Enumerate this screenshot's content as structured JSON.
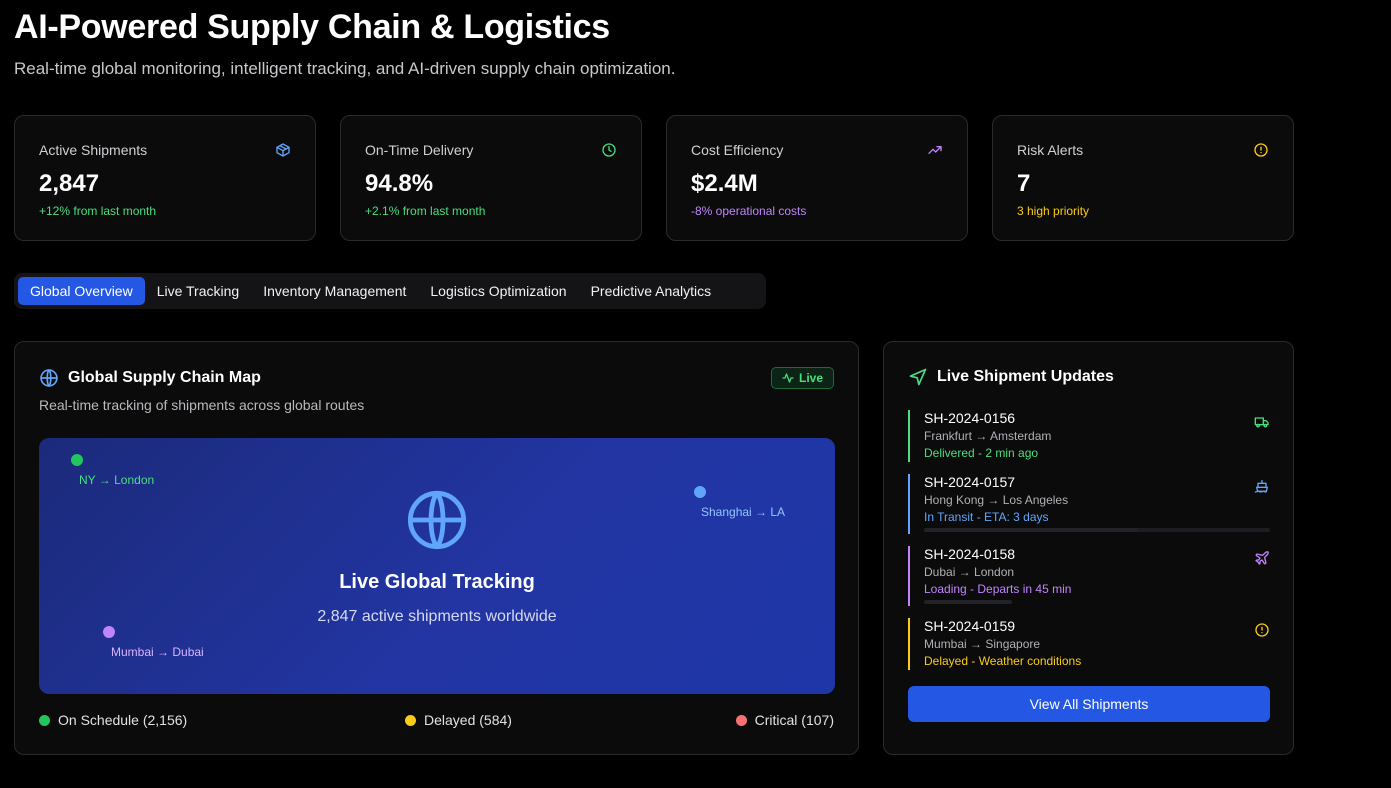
{
  "header": {
    "title": "AI-Powered Supply Chain & Logistics",
    "subtitle": "Real-time global monitoring, intelligent tracking, and AI-driven supply chain optimization."
  },
  "stats": [
    {
      "label": "Active Shipments",
      "value": "2,847",
      "note": "+12% from last month",
      "icon": "package-icon",
      "color": "#4ade80",
      "icon_color": "#60a5fa"
    },
    {
      "label": "On-Time Delivery",
      "value": "94.8%",
      "note": "+2.1% from last month",
      "icon": "clock-icon",
      "color": "#4ade80",
      "icon_color": "#4ade80"
    },
    {
      "label": "Cost Efficiency",
      "value": "$2.4M",
      "note": "-8% operational costs",
      "icon": "trending-up-icon",
      "color": "#c084fc",
      "icon_color": "#c084fc"
    },
    {
      "label": "Risk Alerts",
      "value": "7",
      "note": "3 high priority",
      "icon": "alert-circle-icon",
      "color": "#facc15",
      "icon_color": "#facc15"
    }
  ],
  "tabs": [
    {
      "label": "Global Overview",
      "active": true
    },
    {
      "label": "Live Tracking",
      "active": false
    },
    {
      "label": "Inventory Management",
      "active": false
    },
    {
      "label": "Logistics Optimization",
      "active": false
    },
    {
      "label": "Predictive Analytics",
      "active": false
    }
  ],
  "map_panel": {
    "title": "Global Supply Chain Map",
    "subtitle": "Real-time tracking of shipments across global routes",
    "badge": "Live",
    "heading": "Live Global Tracking",
    "count_text": "2,847 active shipments worldwide",
    "routes": [
      {
        "label": "NY → London",
        "color": "#22c55e"
      },
      {
        "label": "Shanghai → LA",
        "color": "#60a5fa"
      },
      {
        "label": "Mumbai → Dubai",
        "color": "#c084fc"
      }
    ],
    "legend": [
      {
        "label": "On Schedule (2,156)",
        "color": "#22c55e"
      },
      {
        "label": "Delayed (584)",
        "color": "#facc15"
      },
      {
        "label": "Critical (107)",
        "color": "#f87171"
      }
    ]
  },
  "updates_panel": {
    "title": "Live Shipment Updates",
    "button_label": "View All Shipments",
    "shipments": [
      {
        "id": "SH-2024-0156",
        "route": "Frankfurt → Amsterdam",
        "status": "Delivered - 2 min ago",
        "color": "#4ade80",
        "icon": "truck-icon",
        "progress": null
      },
      {
        "id": "SH-2024-0157",
        "route": "Hong Kong → Los Angeles",
        "status": "In Transit - ETA: 3 days",
        "color": "#60a5fa",
        "icon": "ship-icon",
        "progress": 0.62
      },
      {
        "id": "SH-2024-0158",
        "route": "Dubai → London",
        "status": "Loading - Departs in 45 min",
        "color": "#c084fc",
        "icon": "plane-icon",
        "progress": 0.24
      },
      {
        "id": "SH-2024-0159",
        "route": "Mumbai → Singapore",
        "status": "Delayed - Weather conditions",
        "color": "#facc15",
        "icon": "alert-circle-icon",
        "progress": null
      }
    ]
  }
}
